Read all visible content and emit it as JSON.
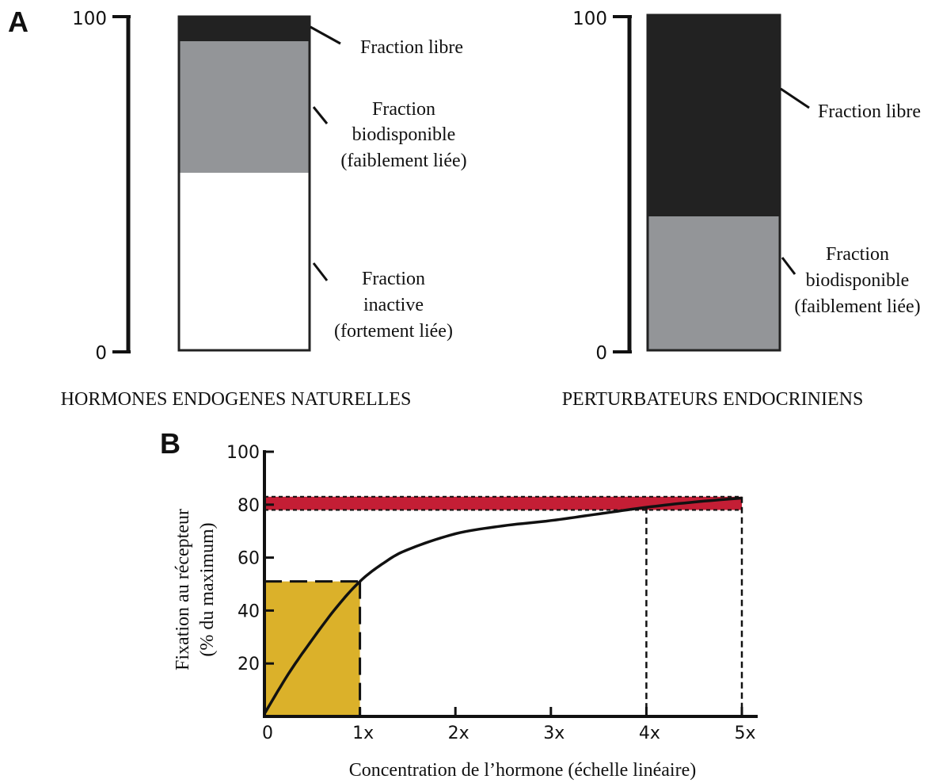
{
  "chart_data": [
    {
      "panel": "A",
      "type": "bar",
      "stacked": true,
      "ylim": [
        0,
        100
      ],
      "ytick_labels": [
        "0",
        "100"
      ],
      "colors": {
        "libre": "#222222",
        "biodisponible": "#939598",
        "inactive": "#ffffff"
      },
      "bars": [
        {
          "title": "HORMONES ENDOGENES NATURELLES",
          "segments": [
            {
              "key": "inactive",
              "lines": [
                "Fraction",
                "inactive",
                "(fortement liée)"
              ],
              "value": 53
            },
            {
              "key": "biodisponible",
              "lines": [
                "Fraction",
                "biodisponible",
                "(faiblement liée)"
              ],
              "value": 40
            },
            {
              "key": "libre",
              "lines": [
                "Fraction libre"
              ],
              "value": 7
            }
          ]
        },
        {
          "title": "PERTURBATEURS ENDOCRINIENS",
          "segments": [
            {
              "key": "biodisponible",
              "lines": [
                "Fraction",
                "biodisponible",
                "(faiblement liée)"
              ],
              "value": 40
            },
            {
              "key": "libre",
              "lines": [
                "Fraction libre"
              ],
              "value": 60
            }
          ]
        }
      ]
    },
    {
      "panel": "B",
      "type": "line",
      "xlabel": "Concentration de l’hormone (échelle linéaire)",
      "ylabel_lines": [
        "Fixation au récepteur",
        "(% du maximum)"
      ],
      "xlim": [
        0,
        5
      ],
      "ylim": [
        0,
        100
      ],
      "x_ticks": [
        0,
        1,
        2,
        3,
        4,
        5
      ],
      "x_tick_labels": [
        "0",
        "1x",
        "2x",
        "3x",
        "4x",
        "5x"
      ],
      "y_ticks": [
        20,
        40,
        60,
        80,
        100
      ],
      "y_tick_labels": [
        "20",
        "40",
        "60",
        "80",
        "100"
      ],
      "curve": {
        "x": [
          0,
          0.25,
          0.5,
          0.75,
          1,
          1.25,
          1.5,
          2,
          2.5,
          3,
          3.5,
          4,
          4.5,
          5
        ],
        "y": [
          1,
          16,
          29,
          41,
          51,
          58,
          63,
          69,
          72,
          74,
          76.5,
          79,
          81,
          82.5
        ]
      },
      "shaded_regions": [
        {
          "kind": "box",
          "x": [
            0,
            1
          ],
          "y": [
            0,
            51
          ],
          "color": "#dbb12a"
        },
        {
          "kind": "band",
          "x": [
            0,
            5
          ],
          "y": [
            78,
            83
          ],
          "color": "#c41e35"
        }
      ],
      "reference_lines": [
        {
          "x": 4,
          "y_top": 79
        },
        {
          "x": 5,
          "y_top": 83
        }
      ]
    }
  ],
  "panel_labels": {
    "a": "A",
    "b": "B"
  }
}
